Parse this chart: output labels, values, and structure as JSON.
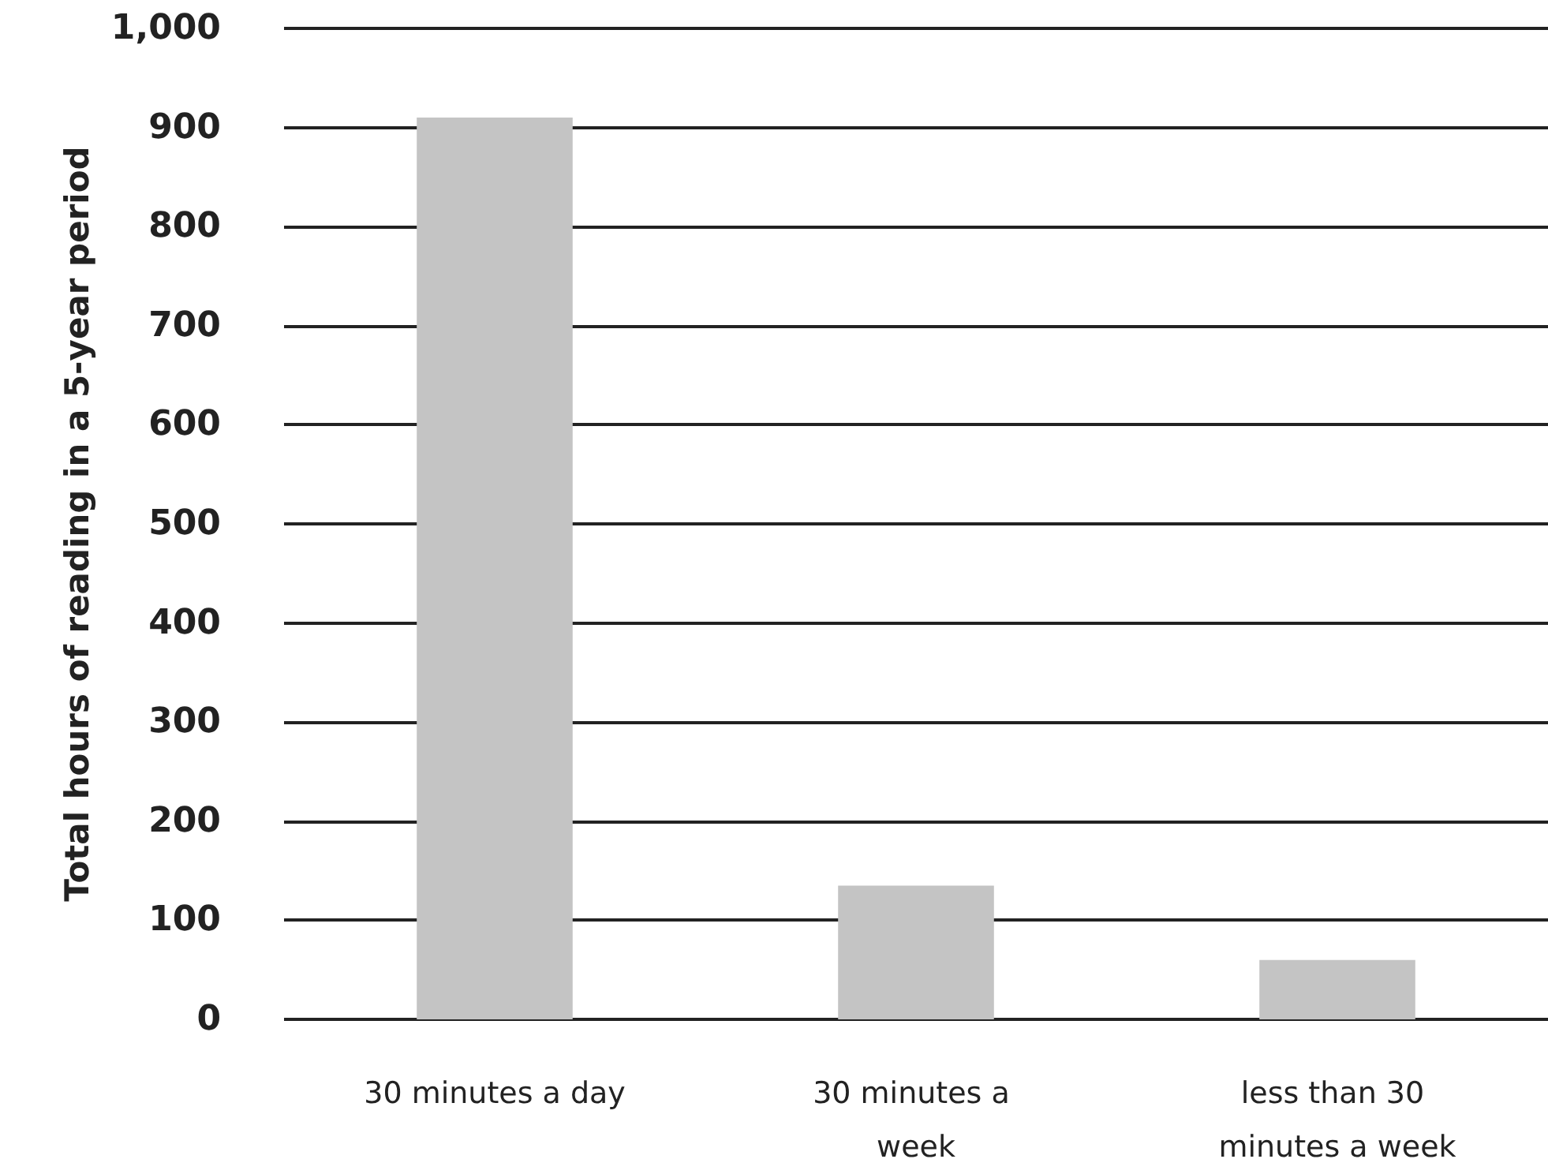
{
  "chart_data": {
    "type": "bar",
    "ylabel": "Total hours of reading in a 5-year period",
    "categories": [
      "30 minutes a day",
      "30 minutes a week",
      "less than 30 minutes a week"
    ],
    "values": [
      910,
      135,
      60
    ],
    "color": "#c4c4c4",
    "ylim": [
      0,
      1000
    ],
    "yticks": [
      0,
      100,
      200,
      300,
      400,
      500,
      600,
      700,
      800,
      900,
      {
        "value": 1000,
        "label": "1,000"
      }
    ],
    "grid": "y"
  }
}
